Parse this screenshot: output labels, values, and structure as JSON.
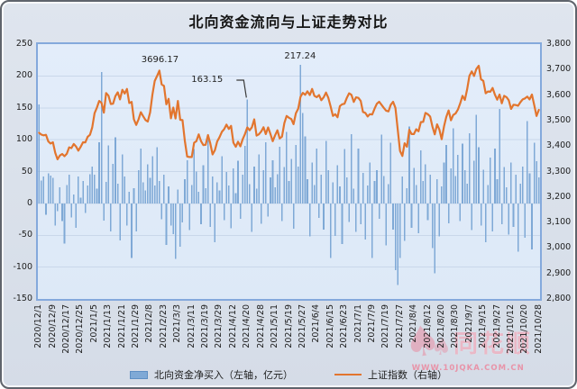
{
  "header": {
    "title": "北向资金流向与上证走势对比"
  },
  "legend": {
    "bar_label": "北向资金净买入（左轴，亿元）",
    "line_label": "上证指数（右轴）"
  },
  "watermark": {
    "brand": "同花顺",
    "url": "WWW.10JQKA.COM.CN",
    "icon": "spade-suit"
  },
  "colors": {
    "bar": "#7fa9d6",
    "bar_edge": "#5e8fc4",
    "line": "#e2752e",
    "grid": "#c9d7ea",
    "plot_bg": "#dfeaf8",
    "plot_border": "#84a9dc",
    "card_bg": "#dbe2ec",
    "watermark_pink": "#e98ba1"
  },
  "chart_data": {
    "type": "combo-bar-line",
    "title": "北向资金流向与上证走势对比",
    "grid": "horizontal",
    "legend_position": "bottom",
    "left_axis": {
      "label": "北向资金净买入（亿元）",
      "min": -150,
      "max": 250,
      "step": 50,
      "ticks": [
        "250",
        "200",
        "150",
        "100",
        "50",
        "0",
        "-50",
        "-100",
        "-150"
      ]
    },
    "right_axis": {
      "label": "上证指数",
      "min": 2800,
      "max": 3800,
      "step": 100,
      "ticks": [
        "3,800",
        "3,700",
        "3,600",
        "3,500",
        "3,400",
        "3,300",
        "3,200",
        "3,100",
        "3,000",
        "2,900",
        "2,800"
      ]
    },
    "x_tick_every": 6,
    "x_tick_labels": [
      "2020/12/1",
      "2020/12/9",
      "2020/12/17",
      "2020/12/25",
      "2021/1/5",
      "2021/1/13",
      "2021/1/21",
      "2021/1/29",
      "2021/2/8",
      "2021/2/23",
      "2021/3/3",
      "2021/3/11",
      "2021/3/19",
      "2021/3/29",
      "2021/4/12",
      "2021/4/20",
      "2021/4/28",
      "2021/5/11",
      "2021/5/19",
      "2021/5/27",
      "2021/6/4",
      "2021/6/15",
      "2021/6/23",
      "2021/7/1",
      "2021/7/9",
      "2021/7/19",
      "2021/7/27",
      "2021/8/4",
      "2021/8/12",
      "2021/8/20",
      "2021/8/30",
      "2021/9/7",
      "2021/9/15",
      "2021/9/27",
      "2021/10/12",
      "2021/10/20",
      "2021/10/28"
    ],
    "annotations": [
      {
        "text": "3696.17",
        "series": "line",
        "index": 52,
        "leader": false
      },
      {
        "text": "163.15",
        "series": "bar",
        "index": 90,
        "leader": true
      },
      {
        "text": "217.24",
        "series": "bar",
        "index": 113,
        "leader": false
      }
    ],
    "series": [
      {
        "name": "北向资金净买入（左轴，亿元）",
        "type": "bar",
        "axis": "left",
        "values": [
          155,
          36,
          42,
          -18,
          47,
          44,
          40,
          -35,
          -12,
          25,
          -28,
          -63,
          29,
          45,
          -22,
          14,
          -38,
          42,
          9,
          35,
          -15,
          28,
          46,
          58,
          45,
          23,
          96,
          206,
          -27,
          34,
          91,
          -44,
          62,
          104,
          31,
          -58,
          77,
          42,
          -35,
          18,
          -86,
          24,
          -44,
          52,
          86,
          33,
          20,
          61,
          40,
          74,
          28,
          88,
          35,
          -25,
          45,
          -65,
          27,
          -35,
          -48,
          -87,
          22,
          -68,
          -30,
          38,
          68,
          -42,
          29,
          85,
          50,
          18,
          -33,
          60,
          24,
          101,
          -37,
          42,
          -61,
          33,
          20,
          74,
          -26,
          49,
          28,
          -39,
          55,
          16,
          67,
          -24,
          45,
          90,
          163.15,
          30,
          -45,
          58,
          23,
          77,
          -32,
          52,
          96,
          -21,
          41,
          68,
          25,
          46,
          89,
          -28,
          57,
          112,
          35,
          70,
          -40,
          92,
          58,
          217.24,
          142,
          105,
          38,
          -52,
          64,
          29,
          86,
          -23,
          45,
          -41,
          98,
          52,
          -86,
          33,
          -51,
          60,
          27,
          -64,
          85,
          41,
          -29,
          109,
          23,
          -45,
          86,
          -33,
          48,
          -57,
          28,
          64,
          -86,
          35,
          52,
          -24,
          108,
          43,
          -66,
          30,
          95,
          -41,
          -105,
          -128,
          -86,
          42,
          -59,
          24,
          121,
          -38,
          56,
          29,
          -47,
          83,
          35,
          61,
          -26,
          45,
          -70,
          -110,
          38,
          -52,
          27,
          64,
          92,
          -31,
          55,
          118,
          43,
          76,
          -28,
          94,
          52,
          31,
          110,
          -42,
          67,
          139,
          88,
          -35,
          53,
          -61,
          29,
          72,
          -44,
          86,
          38,
          148,
          -33,
          57,
          25,
          -49,
          64,
          -37,
          45,
          -76,
          31,
          58,
          -54,
          129,
          47,
          -72,
          95,
          66,
          41
        ]
      },
      {
        "name": "上证指数（右轴）",
        "type": "line",
        "axis": "right",
        "values": [
          3452,
          3445,
          3442,
          3444,
          3418,
          3410,
          3415,
          3373,
          3348,
          3363,
          3369,
          3360,
          3370,
          3395,
          3392,
          3408,
          3398,
          3382,
          3397,
          3415,
          3414,
          3436,
          3444,
          3473,
          3529,
          3551,
          3577,
          3570,
          3531,
          3608,
          3598,
          3565,
          3566,
          3596,
          3611,
          3583,
          3621,
          3606,
          3624,
          3569,
          3573,
          3505,
          3483,
          3505,
          3533,
          3517,
          3502,
          3496,
          3532,
          3603,
          3655,
          3675,
          3696.17,
          3642,
          3636,
          3564,
          3585,
          3509,
          3551,
          3508,
          3577,
          3503,
          3502,
          3421,
          3359,
          3357,
          3357,
          3413,
          3419,
          3446,
          3419,
          3404,
          3405,
          3443,
          3411,
          3367,
          3384,
          3418,
          3435,
          3456,
          3466,
          3484,
          3467,
          3479,
          3413,
          3397,
          3417,
          3399,
          3427,
          3447,
          3473,
          3462,
          3474,
          3505,
          3441,
          3446,
          3457,
          3474,
          3447,
          3473,
          3447,
          3419,
          3442,
          3462,
          3430,
          3437,
          3490,
          3518,
          3511,
          3506,
          3486,
          3529,
          3547,
          3593,
          3609,
          3601,
          3615,
          3600,
          3624,
          3597,
          3592,
          3600,
          3580,
          3591,
          3610,
          3590,
          3556,
          3518,
          3525,
          3513,
          3557,
          3564,
          3566,
          3589,
          3607,
          3601,
          3573,
          3591,
          3589,
          3577,
          3534,
          3530,
          3516,
          3525,
          3524,
          3547,
          3566,
          3574,
          3562,
          3550,
          3539,
          3536,
          3562,
          3574,
          3550,
          3467,
          3381,
          3361,
          3411,
          3397,
          3464,
          3447,
          3447,
          3466,
          3458,
          3494,
          3495,
          3530,
          3525,
          3516,
          3477,
          3446,
          3485,
          3465,
          3427,
          3477,
          3514,
          3540,
          3501,
          3522,
          3528,
          3543,
          3567,
          3597,
          3581,
          3622,
          3676,
          3693,
          3675,
          3703,
          3715,
          3662,
          3656,
          3607,
          3614,
          3613,
          3628,
          3602,
          3582,
          3602,
          3568,
          3597,
          3592,
          3580,
          3546,
          3562,
          3561,
          3558,
          3572,
          3583,
          3587,
          3594,
          3583,
          3602,
          3560,
          3518,
          3542
        ]
      }
    ]
  }
}
